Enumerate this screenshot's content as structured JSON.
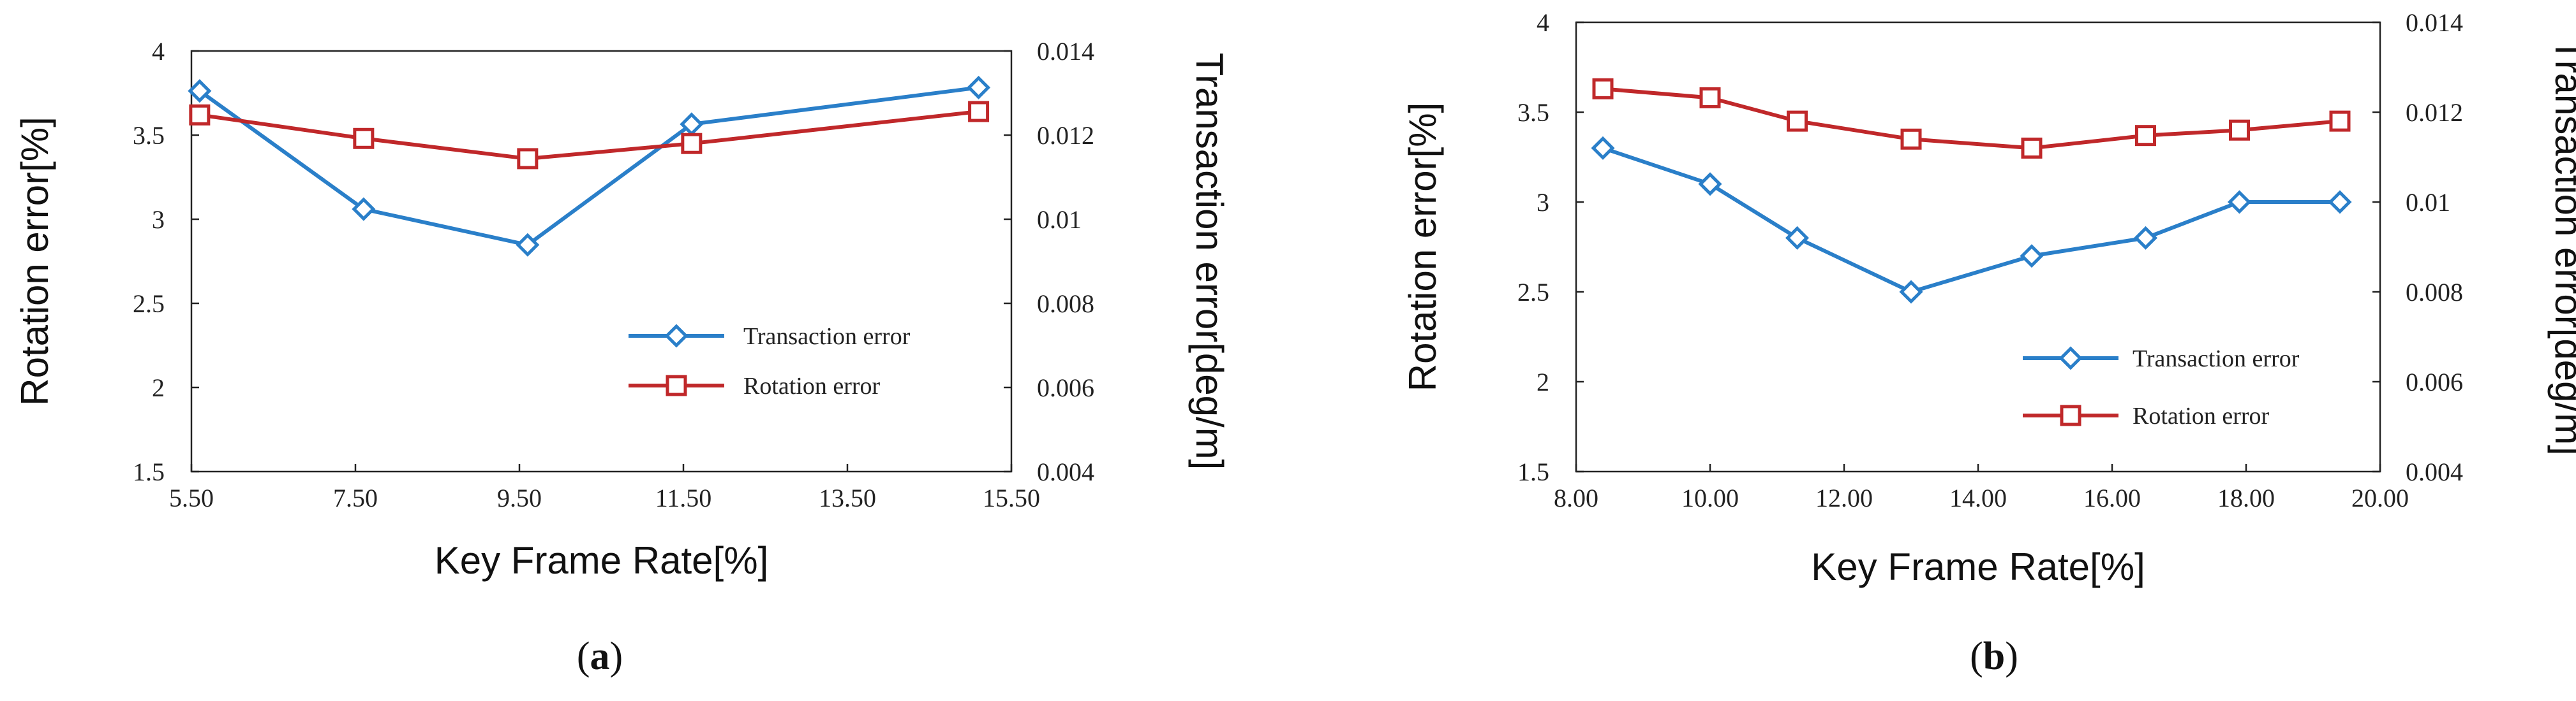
{
  "chart_data": [
    {
      "type": "line",
      "panel_label": "a",
      "xlabel": "Key Frame Rate[%]",
      "ylabel_left": "Rotation error[%]",
      "ylabel_right": "Transaction error[deg/m]",
      "xlim": [
        5.5,
        15.5
      ],
      "xticks": [
        "5.50",
        "7.50",
        "9.50",
        "11.50",
        "13.50",
        "15.50"
      ],
      "xtick_values": [
        5.5,
        7.5,
        9.5,
        11.5,
        13.5,
        15.5
      ],
      "ylim_left": [
        1.5,
        4
      ],
      "yticks_left": [
        "1.5",
        "2",
        "2.5",
        "3",
        "3.5",
        "4"
      ],
      "ytick_values_left": [
        1.5,
        2,
        2.5,
        3,
        3.5,
        4
      ],
      "ylim_right": [
        0.004,
        0.014
      ],
      "yticks_right": [
        "0.004",
        "0.006",
        "0.008",
        "0.01",
        "0.012",
        "0.014"
      ],
      "ytick_values_right": [
        0.004,
        0.006,
        0.008,
        0.01,
        0.012,
        0.014
      ],
      "legend_position": "center-right",
      "grid": false,
      "series": [
        {
          "name": "Transaction error",
          "axis": "right",
          "marker": "diamond",
          "color": "#2a7fc9",
          "x": [
            5.6,
            7.6,
            9.6,
            11.6,
            15.1
          ],
          "y": [
            0.01305,
            0.01024,
            0.00939,
            0.01226,
            0.01313
          ]
        },
        {
          "name": "Rotation  error",
          "axis": "left",
          "marker": "square",
          "color": "#c0282a",
          "x": [
            5.6,
            7.6,
            9.6,
            11.6,
            15.1
          ],
          "y": [
            3.62,
            3.48,
            3.36,
            3.45,
            3.64
          ]
        }
      ]
    },
    {
      "type": "line",
      "panel_label": "b",
      "xlabel": "Key Frame Rate[%]",
      "ylabel_left": "Rotation error[%]",
      "ylabel_right": "Transaction error[deg/m]",
      "xlim": [
        8,
        20
      ],
      "xticks": [
        "8.00",
        "10.00",
        "12.00",
        "14.00",
        "16.00",
        "18.00",
        "20.00"
      ],
      "xtick_values": [
        8,
        10,
        12,
        14,
        16,
        18,
        20
      ],
      "ylim_left": [
        1.5,
        4
      ],
      "yticks_left": [
        "1.5",
        "2",
        "2.5",
        "3",
        "3.5",
        "4"
      ],
      "ytick_values_left": [
        1.5,
        2,
        2.5,
        3,
        3.5,
        4
      ],
      "ylim_right": [
        0.004,
        0.014
      ],
      "yticks_right": [
        "0.004",
        "0.006",
        "0.008",
        "0.01",
        "0.012",
        "0.014"
      ],
      "ytick_values_right": [
        0.004,
        0.006,
        0.008,
        0.01,
        0.012,
        0.014
      ],
      "legend_position": "center-right",
      "grid": false,
      "series": [
        {
          "name": "Transaction error",
          "axis": "right",
          "marker": "diamond",
          "color": "#2a7fc9",
          "x": [
            8.4,
            10.0,
            11.3,
            13.0,
            14.8,
            16.5,
            17.9,
            19.4
          ],
          "y": [
            0.0112,
            0.0104,
            0.0092,
            0.008,
            0.0088,
            0.0092,
            0.01,
            0.01
          ]
        },
        {
          "name": "Rotation error",
          "axis": "left",
          "marker": "square",
          "color": "#c0282a",
          "x": [
            8.4,
            10.0,
            11.3,
            13.0,
            14.8,
            16.5,
            17.9,
            19.4
          ],
          "y": [
            3.63,
            3.58,
            3.45,
            3.35,
            3.3,
            3.37,
            3.4,
            3.45
          ]
        }
      ]
    }
  ]
}
